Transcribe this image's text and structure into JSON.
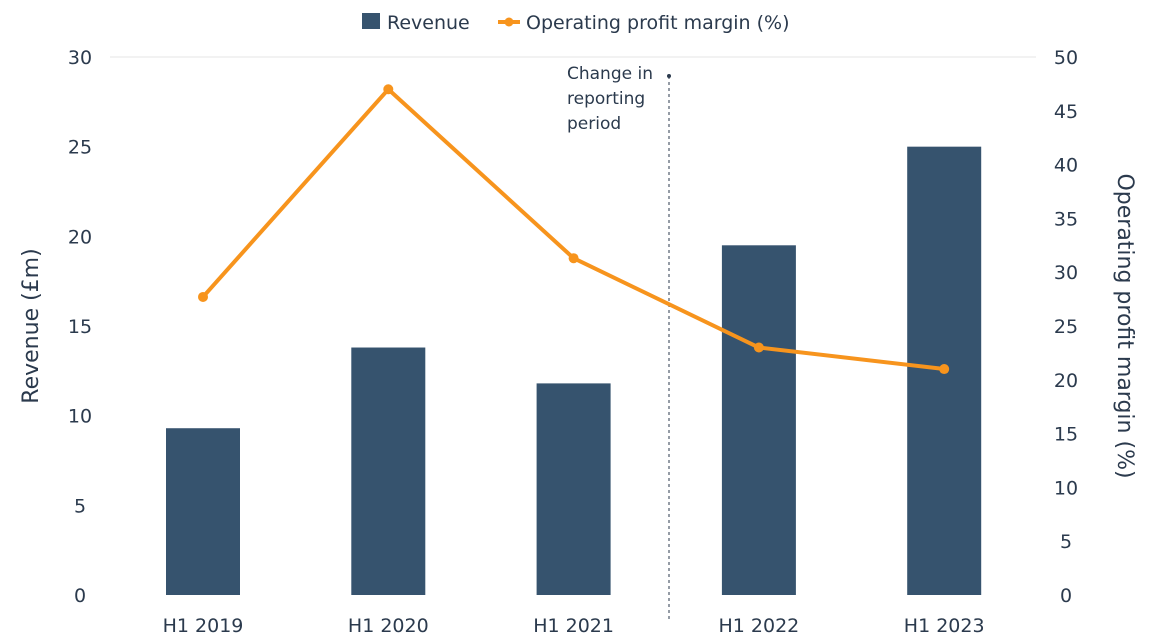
{
  "chart_data": {
    "type": "bar+line",
    "title": "",
    "categories": [
      "H1 2019",
      "H1 2020",
      "H1 2021",
      "H1 2022",
      "H1 2023"
    ],
    "series": [
      {
        "name": "Revenue",
        "type": "bar",
        "axis": "left",
        "values": [
          9.3,
          13.8,
          11.8,
          19.5,
          25.0
        ],
        "color": "#36536e"
      },
      {
        "name": "Operating profit margin (%)",
        "type": "line",
        "axis": "right",
        "values": [
          27.7,
          47.0,
          31.3,
          23.0,
          21.0
        ],
        "color": "#f7941d"
      }
    ],
    "ylabel": "Revenue (£m)",
    "ylim": [
      0,
      30
    ],
    "yticks": [
      "0",
      "5",
      "10",
      "15",
      "20",
      "25",
      "30"
    ],
    "y2label": "Operating profit margin (%)",
    "y2lim": [
      0,
      50
    ],
    "y2ticks": [
      "0",
      "5",
      "10",
      "15",
      "20",
      "25",
      "30",
      "35",
      "40",
      "45",
      "50"
    ],
    "legend_position": "top-center",
    "annotation": {
      "lines": [
        "Change in",
        "reporting",
        "period"
      ],
      "between": [
        "H1 2021",
        "H1 2022"
      ]
    }
  }
}
